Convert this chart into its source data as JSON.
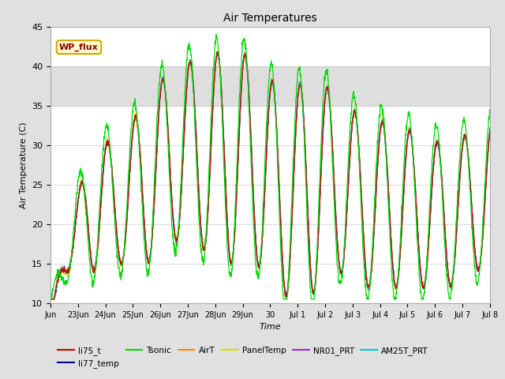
{
  "title": "Air Temperatures",
  "xlabel": "Time",
  "ylabel": "Air Temperature (C)",
  "ylim": [
    10,
    45
  ],
  "xlim_start": 0,
  "xlim_end": 16,
  "x_tick_labels": [
    "Jun",
    "23Jun",
    "24Jun",
    "25Jun",
    "26Jun",
    "27Jun",
    "28Jun",
    "29Jun",
    "30",
    "Jul 1",
    "Jul 2",
    "Jul 3",
    "Jul 4",
    "Jul 5",
    "Jul 6",
    "Jul 7",
    "Jul 8"
  ],
  "x_tick_positions": [
    0,
    1,
    2,
    3,
    4,
    5,
    6,
    7,
    8,
    9,
    10,
    11,
    12,
    13,
    14,
    15,
    16
  ],
  "series_colors": {
    "li75_t": "#cc0000",
    "li77_temp": "#000099",
    "Tsonic": "#00dd00",
    "AirT": "#ff8800",
    "PanelTemp": "#dddd00",
    "NR01_PRT": "#9933cc",
    "AM25T_PRT": "#00cccc"
  },
  "station_label": "WP_flux",
  "station_label_color": "#8b0000",
  "station_box_facecolor": "#ffffcc",
  "station_box_edgecolor": "#ccaa00",
  "shaded_band_ymin": 35,
  "shaded_band_ymax": 40,
  "fig_facecolor": "#e0e0e0",
  "axes_facecolor": "#ffffff",
  "grid_color": "#cccccc",
  "spine_color": "#aaaaaa"
}
